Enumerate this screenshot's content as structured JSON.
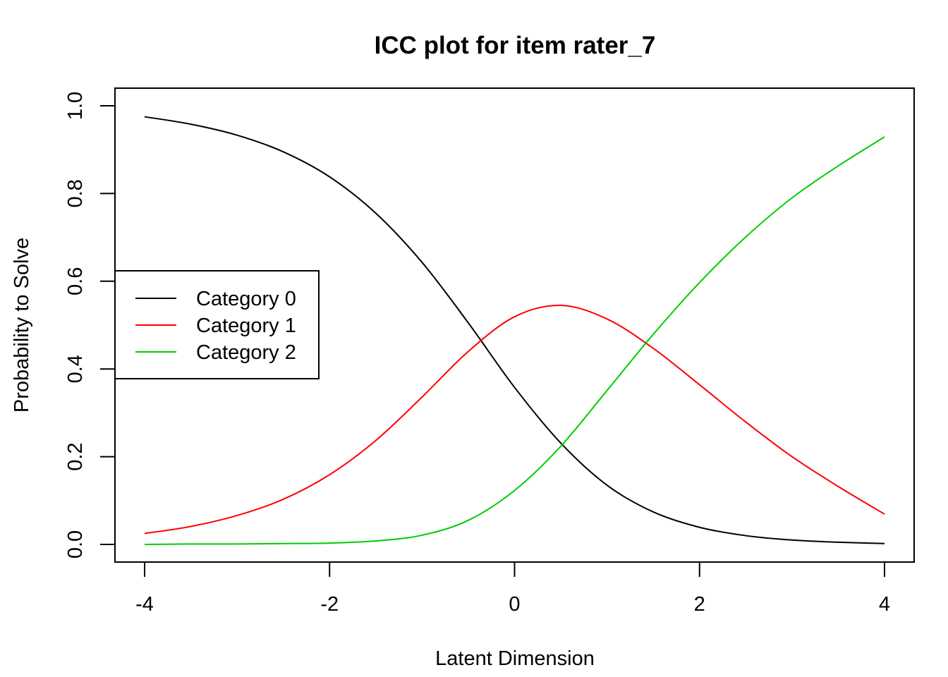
{
  "chart_data": {
    "type": "line",
    "title": "ICC plot for item rater_7",
    "xlabel": "Latent Dimension",
    "ylabel": "Probability to Solve",
    "xlim": [
      -4,
      4
    ],
    "ylim": [
      0,
      1
    ],
    "xticks": [
      "-4",
      "-2",
      "0",
      "2",
      "4"
    ],
    "yticks": [
      "0.0",
      "0.2",
      "0.4",
      "0.6",
      "0.8",
      "1.0"
    ],
    "legend_position": "left",
    "x": [
      -4,
      -3.5,
      -3,
      -2.5,
      -2,
      -1.5,
      -1,
      -0.5,
      0,
      0.5,
      1,
      1.5,
      2,
      2.5,
      3,
      3.5,
      4
    ],
    "series": [
      {
        "name": "Category 0",
        "color": "#000000",
        "values": [
          0.975,
          0.958,
          0.933,
          0.895,
          0.838,
          0.755,
          0.643,
          0.505,
          0.358,
          0.231,
          0.135,
          0.074,
          0.039,
          0.02,
          0.01,
          0.005,
          0.002
        ]
      },
      {
        "name": "Category 1",
        "color": "#ff0000",
        "values": [
          0.025,
          0.041,
          0.066,
          0.103,
          0.159,
          0.237,
          0.336,
          0.44,
          0.519,
          0.545,
          0.514,
          0.447,
          0.364,
          0.279,
          0.2,
          0.132,
          0.069
        ]
      },
      {
        "name": "Category 2",
        "color": "#00cd00",
        "values": [
          0.0,
          0.001,
          0.001,
          0.002,
          0.003,
          0.008,
          0.021,
          0.055,
          0.123,
          0.224,
          0.351,
          0.479,
          0.597,
          0.701,
          0.79,
          0.863,
          0.929
        ]
      }
    ]
  }
}
